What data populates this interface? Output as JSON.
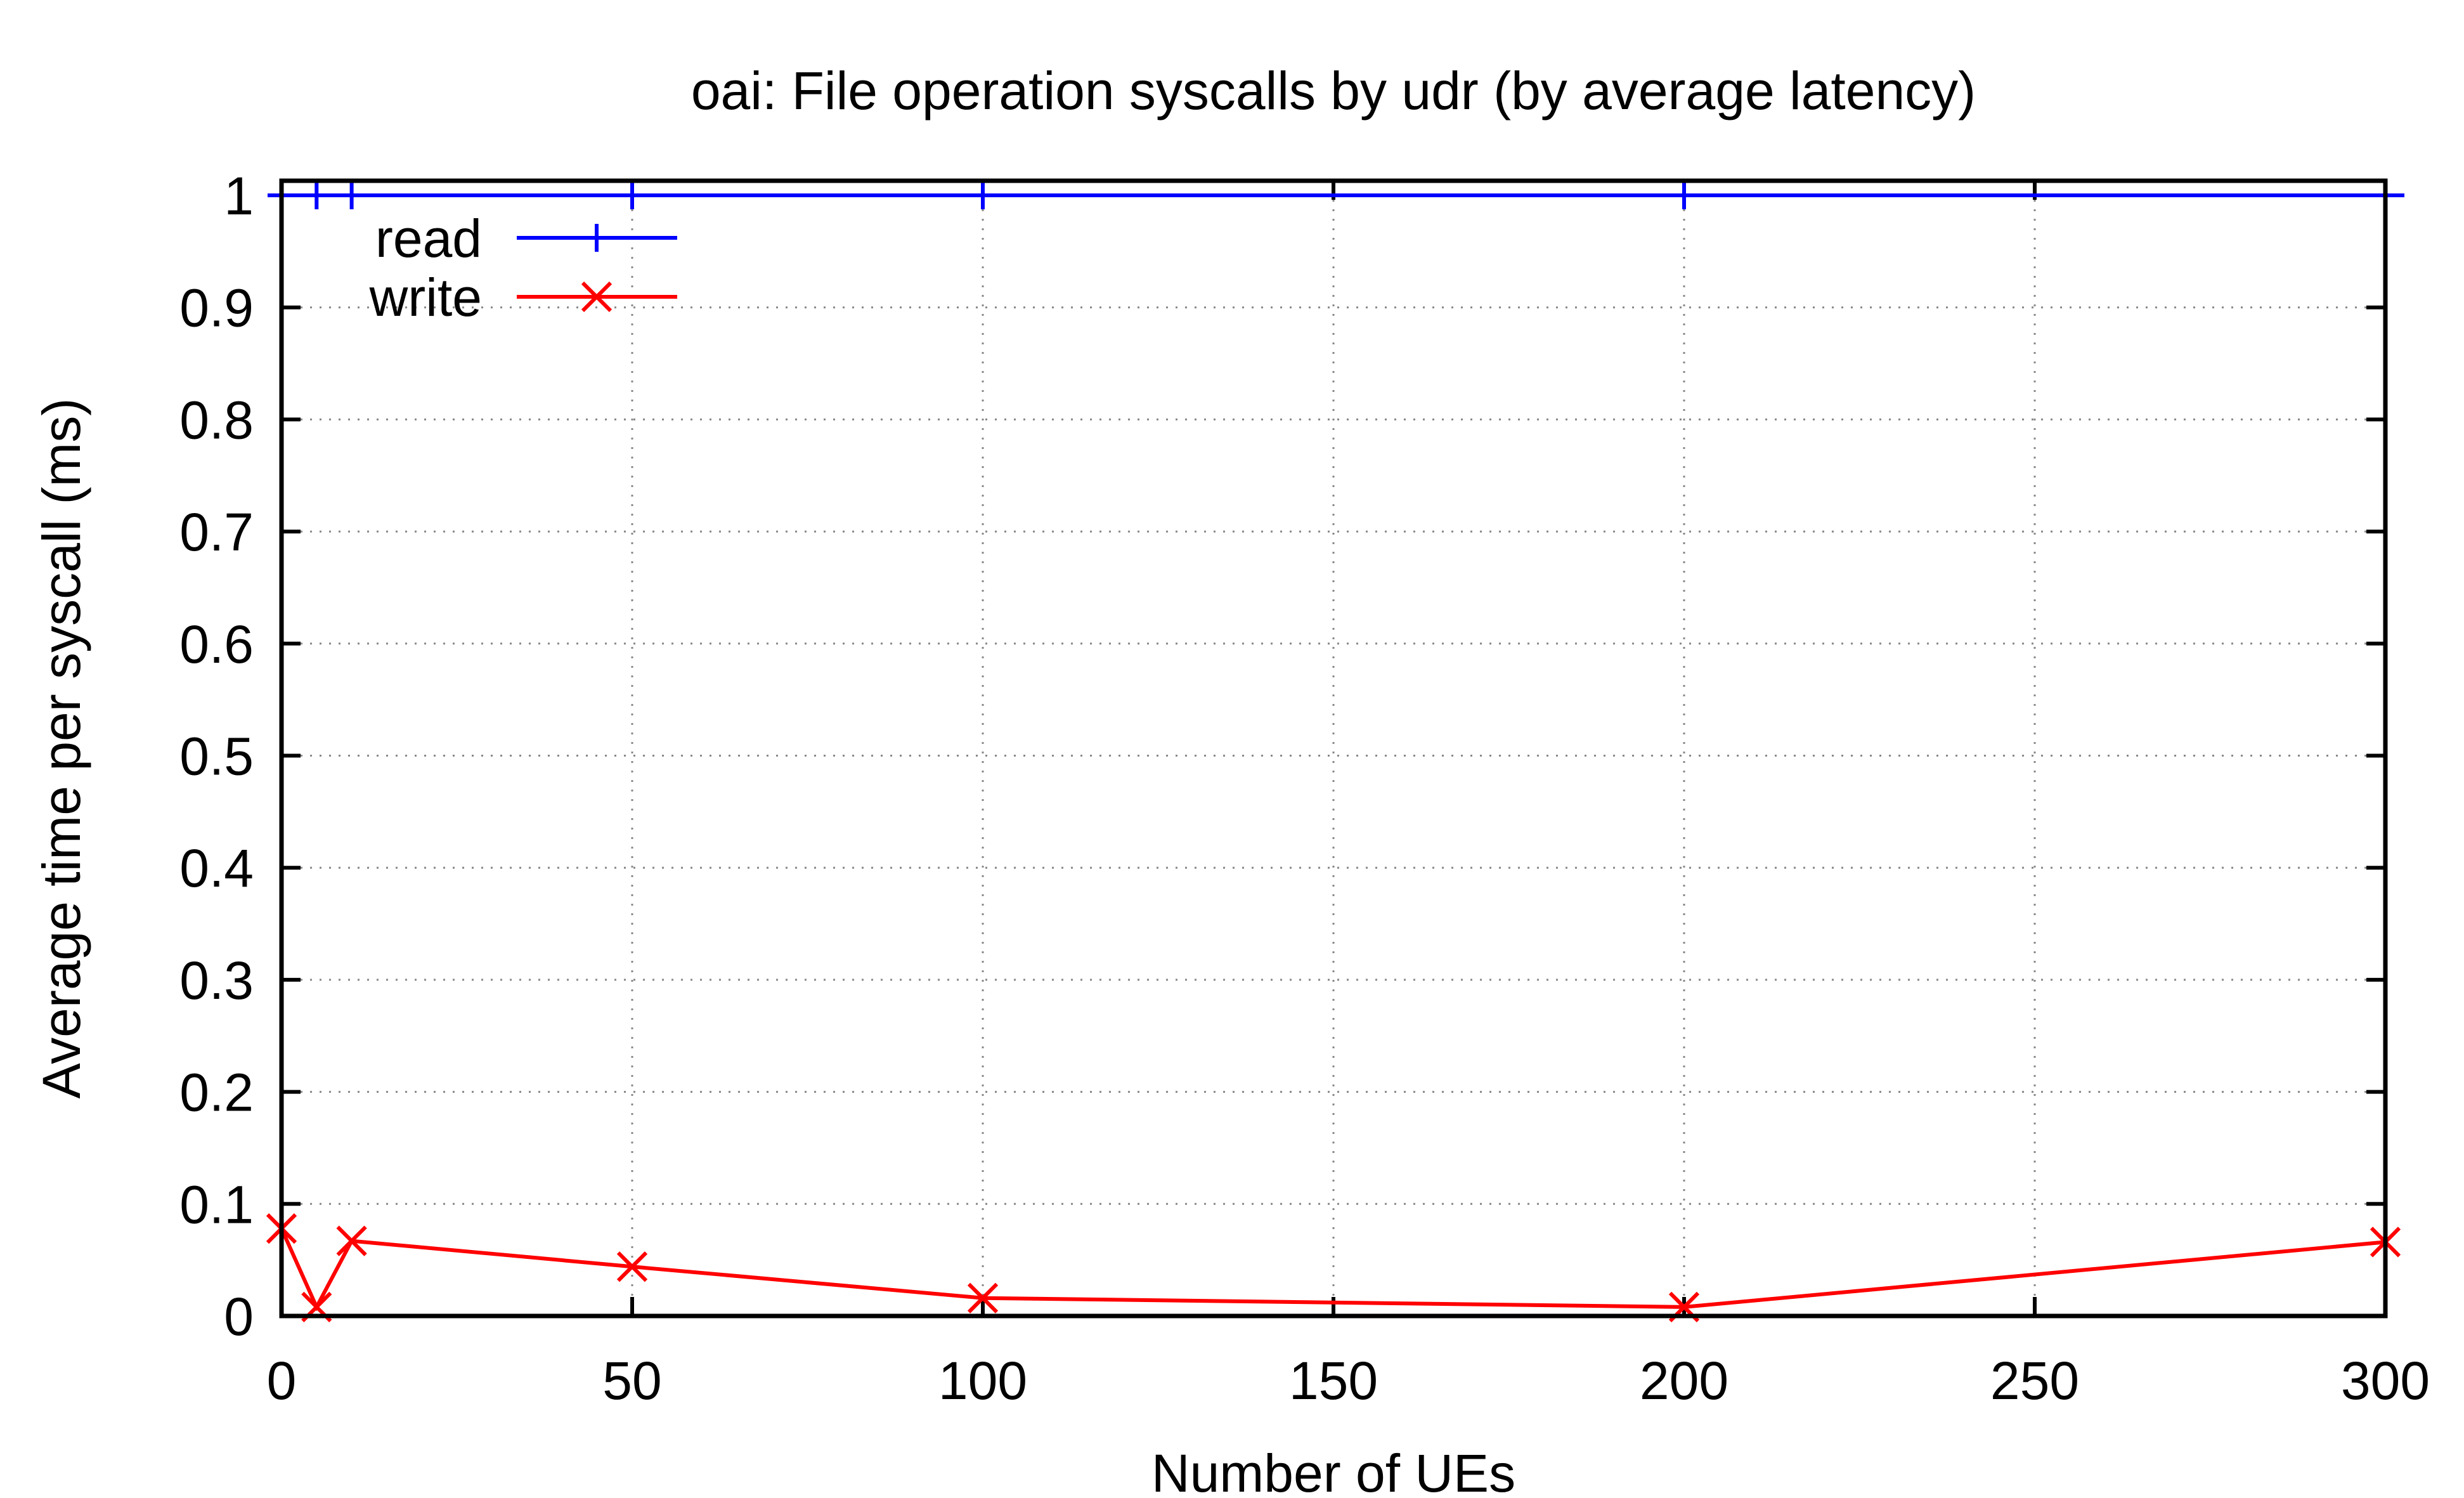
{
  "chart_data": {
    "type": "line",
    "title": "oai: File operation syscalls by udr (by average latency)",
    "xlabel": "Number of UEs",
    "ylabel": "Average time per syscall (ms)",
    "xlim": [
      0,
      300
    ],
    "ylim": [
      0,
      1
    ],
    "xticks": [
      0,
      50,
      100,
      150,
      200,
      250,
      300
    ],
    "xtick_labels": [
      "0",
      "50",
      "100",
      "150",
      "200",
      "250",
      "300"
    ],
    "yticks": [
      0,
      0.1,
      0.2,
      0.3,
      0.4,
      0.5,
      0.6,
      0.7,
      0.8,
      0.9,
      1
    ],
    "ytick_labels": [
      "0",
      "0.1",
      "0.2",
      "0.3",
      "0.4",
      "0.5",
      "0.6",
      "0.7",
      "0.8",
      "0.9",
      "1"
    ],
    "grid": true,
    "legend_position": "top-left",
    "series": [
      {
        "name": "read",
        "color": "#0000ff",
        "marker": "plus",
        "x": [
          0,
          5,
          10,
          50,
          100,
          200,
          300
        ],
        "y": [
          1.0,
          1.0,
          1.0,
          1.0,
          1.0,
          1.0,
          1.0
        ]
      },
      {
        "name": "write",
        "color": "#ff0000",
        "marker": "cross",
        "x": [
          0,
          5,
          10,
          50,
          100,
          200,
          300
        ],
        "y": [
          0.078,
          0.008,
          0.067,
          0.044,
          0.016,
          0.008,
          0.066
        ]
      }
    ]
  }
}
